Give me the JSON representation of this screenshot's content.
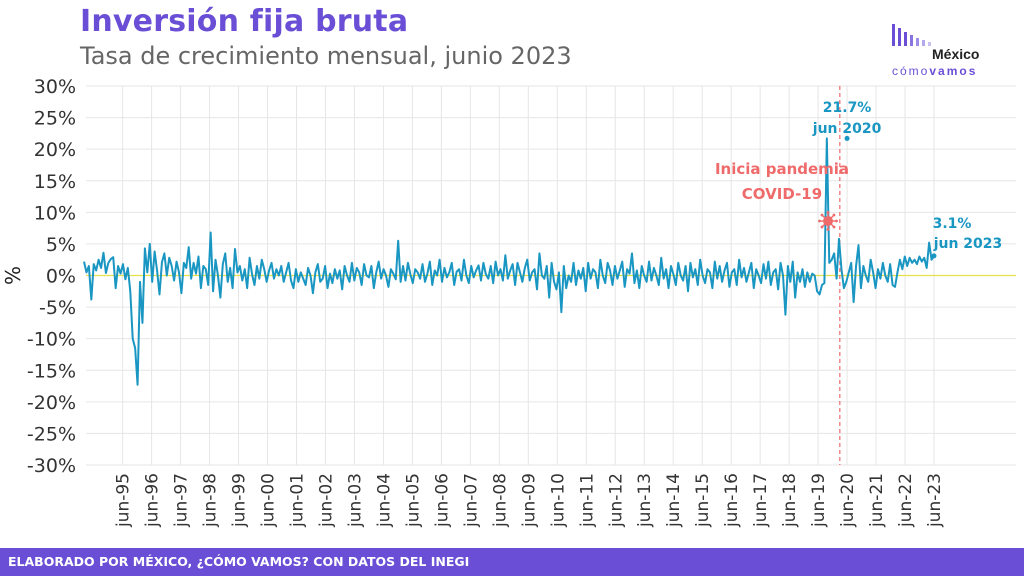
{
  "header": {
    "title": "Inversión fija bruta",
    "subtitle": "Tasa de crecimiento mensual, junio 2023"
  },
  "logo": {
    "line1": "México",
    "line2_a": "cómo",
    "line2_b": "vamos",
    "icon": "bars-logo-icon"
  },
  "footer": {
    "text": "ELABORADO POR MÉXICO, ¿CÓMO VAMOS? CON DATOS DEL INEGI"
  },
  "colors": {
    "title": "#6a4fd6",
    "line": "#1a96c2",
    "zero_line": "#e8e04a",
    "pandemic": "#ef6a6a",
    "grid": "#e6e6e6",
    "footer_bg": "#6a4fd6"
  },
  "chart_data": {
    "type": "line",
    "title": "Inversión fija bruta",
    "subtitle": "Tasa de crecimiento mensual, junio 2023",
    "xlabel": "",
    "ylabel": "%",
    "ylim": [
      -30,
      30
    ],
    "y_ticks": [
      "-30%",
      "-25%",
      "-20%",
      "-15%",
      "-10%",
      "-5%",
      "0%",
      "5%",
      "10%",
      "15%",
      "20%",
      "25%",
      "30%"
    ],
    "y_tick_values": [
      -30,
      -25,
      -20,
      -15,
      -10,
      -5,
      0,
      5,
      10,
      15,
      20,
      25,
      30
    ],
    "x_tick_labels": [
      "jun-95",
      "jun-96",
      "jun-97",
      "jun-98",
      "jun-99",
      "jun-00",
      "jun-01",
      "jun-02",
      "jun-03",
      "jun-04",
      "jun-05",
      "jun-06",
      "jun-07",
      "jun-08",
      "jun-09",
      "jun-10",
      "jun-11",
      "jun-12",
      "jun-13",
      "jun-14",
      "jun-15",
      "jun-16",
      "jun-17",
      "jun-18",
      "jun-19",
      "jun-20",
      "jun-21",
      "jun-22",
      "jun-23"
    ],
    "x_start": "1994-02",
    "x_end": "2023-06",
    "grid": true,
    "series": [
      {
        "values": [
          2.2,
          0.5,
          1.5,
          -3.8,
          1.8,
          0.8,
          2.5,
          1.2,
          3.6,
          0.4,
          2.0,
          2.6,
          2.9,
          -2.0,
          1.5,
          0.3,
          1.8,
          -0.6,
          1.2,
          -2.5,
          -10.0,
          -11.5,
          -17.3,
          -1.0,
          -7.5,
          4.3,
          0.5,
          5.0,
          -1.0,
          3.8,
          0.8,
          -3.0,
          2.1,
          3.5,
          0.0,
          2.8,
          1.5,
          -0.8,
          2.2,
          0.5,
          -2.8,
          2.0,
          1.2,
          4.5,
          -0.5,
          2.0,
          0.3,
          3.0,
          -2.0,
          1.5,
          1.0,
          -1.5,
          6.8,
          -2.5,
          2.5,
          0.0,
          -3.5,
          1.8,
          3.5,
          -1.0,
          1.2,
          -2.0,
          4.2,
          0.5,
          1.5,
          -0.8,
          1.0,
          -2.0,
          2.8,
          0.2,
          -1.5,
          1.5,
          -0.5,
          2.5,
          1.0,
          -1.0,
          0.8,
          2.0,
          -0.5,
          1.0,
          0.0,
          1.5,
          -1.0,
          0.5,
          2.0,
          -0.8,
          -2.0,
          1.0,
          -1.0,
          0.5,
          -0.5,
          -1.5,
          1.2,
          0.0,
          -2.8,
          0.5,
          1.8,
          -1.0,
          -0.5,
          1.5,
          -2.0,
          0.3,
          -1.2,
          1.0,
          -0.5,
          0.8,
          -2.2,
          1.5,
          0.0,
          -1.0,
          2.0,
          -0.8,
          1.2,
          0.5,
          -1.5,
          1.8,
          0.0,
          -0.3,
          1.5,
          -2.0,
          0.5,
          2.2,
          -0.5,
          1.0,
          0.0,
          -1.8,
          1.0,
          0.3,
          -0.6,
          5.5,
          -1.0,
          1.5,
          -0.8,
          2.0,
          0.2,
          -1.2,
          1.0,
          0.5,
          -0.5,
          1.8,
          -1.0,
          0.3,
          2.2,
          -1.5,
          0.8,
          0.0,
          2.5,
          -1.0,
          1.2,
          -0.3,
          0.5,
          2.0,
          -1.5,
          0.6,
          1.0,
          -0.8,
          2.5,
          0.0,
          -1.2,
          1.5,
          -0.3,
          0.8,
          1.6,
          -0.8,
          2.0,
          0.2,
          -0.5,
          1.5,
          -1.2,
          2.2,
          0.0,
          1.0,
          -0.8,
          3.2,
          -0.5,
          0.8,
          1.8,
          -1.5,
          2.0,
          0.5,
          -1.0,
          1.2,
          2.5,
          -0.8,
          0.5,
          1.0,
          -2.2,
          3.5,
          0.0,
          -0.5,
          1.5,
          -3.5,
          2.0,
          -1.0,
          -2.2,
          0.5,
          -5.8,
          1.5,
          -2.0,
          0.0,
          -1.0,
          2.0,
          -1.5,
          0.8,
          -0.5,
          1.2,
          -2.5,
          2.0,
          -0.5,
          1.0,
          0.5,
          -2.0,
          2.5,
          0.0,
          -1.2,
          2.0,
          0.8,
          -1.5,
          1.5,
          -0.5,
          0.8,
          2.2,
          -1.8,
          1.0,
          0.3,
          3.5,
          -1.2,
          0.8,
          -2.0,
          1.5,
          0.0,
          -1.0,
          2.2,
          -0.8,
          1.2,
          0.0,
          -1.5,
          2.8,
          -0.5,
          1.0,
          -2.0,
          1.5,
          0.2,
          -1.5,
          2.0,
          0.0,
          -0.8,
          1.5,
          -2.5,
          2.0,
          -0.3,
          1.0,
          -1.5,
          2.5,
          0.0,
          -1.2,
          1.0,
          0.5,
          -2.0,
          2.2,
          -0.5,
          1.5,
          -1.0,
          0.8,
          2.0,
          -1.8,
          0.5,
          1.0,
          -1.5,
          2.5,
          -0.3,
          1.2,
          -1.0,
          0.5,
          2.0,
          -2.0,
          1.0,
          0.0,
          -1.2,
          1.8,
          -0.5,
          2.2,
          -1.5,
          0.5,
          1.0,
          -2.2,
          2.0,
          0.0,
          -6.2,
          1.5,
          -1.0,
          2.2,
          -3.5,
          0.5,
          -1.0,
          1.0,
          -1.8,
          0.5,
          -1.0,
          0.3,
          0.0,
          -2.5,
          -3.0,
          -1.5,
          -1.2,
          21.7,
          2.0,
          2.5,
          3.5,
          -0.5,
          5.8,
          1.0,
          -2.0,
          -1.0,
          0.5,
          2.0,
          -4.2,
          1.5,
          4.8,
          -2.0,
          1.5,
          0.0,
          -1.0,
          2.5,
          0.5,
          -2.0,
          1.0,
          -0.5,
          2.0,
          0.0,
          -1.0,
          1.8,
          -1.5,
          -1.8,
          0.5,
          2.5,
          1.0,
          3.0,
          1.5,
          2.8,
          2.0,
          2.5,
          1.8,
          3.0,
          2.2,
          2.8,
          1.2,
          5.2,
          2.5,
          3.1
        ]
      }
    ],
    "annotations": [
      {
        "label_value": "21.7%",
        "label_date": "jun 2020",
        "x": "2020-06",
        "y": 21.7
      },
      {
        "label_value": "3.1%",
        "label_date": "jun 2023",
        "x": "2023-06",
        "y": 3.1
      },
      {
        "label_line1": "Inicia pandemia",
        "label_line2": "COVID-19",
        "x": "2020-03",
        "icon": "virus-icon"
      }
    ]
  }
}
